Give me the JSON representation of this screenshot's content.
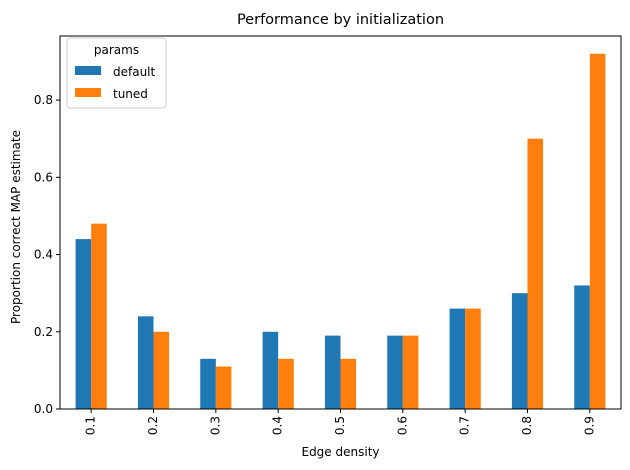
{
  "chart_data": {
    "type": "bar",
    "title": "Performance by initialization",
    "xlabel": "Edge density",
    "ylabel": "Proportion correct MAP estimate",
    "categories": [
      "0.1",
      "0.2",
      "0.3",
      "0.4",
      "0.5",
      "0.6",
      "0.7",
      "0.8",
      "0.9"
    ],
    "series": [
      {
        "name": "default",
        "color": "#1f77b4",
        "values": [
          0.44,
          0.24,
          0.13,
          0.2,
          0.19,
          0.19,
          0.26,
          0.3,
          0.32
        ]
      },
      {
        "name": "tuned",
        "color": "#ff7f0e",
        "values": [
          0.48,
          0.2,
          0.11,
          0.13,
          0.13,
          0.19,
          0.26,
          0.7,
          0.92
        ]
      }
    ],
    "ylim": [
      0,
      0.966
    ],
    "yticks": [
      0.0,
      0.2,
      0.4,
      0.6,
      0.8
    ],
    "ytick_labels": [
      "0.0",
      "0.2",
      "0.4",
      "0.6",
      "0.8"
    ],
    "grid": false,
    "legend": {
      "title": "params",
      "placement": "top-left"
    }
  }
}
